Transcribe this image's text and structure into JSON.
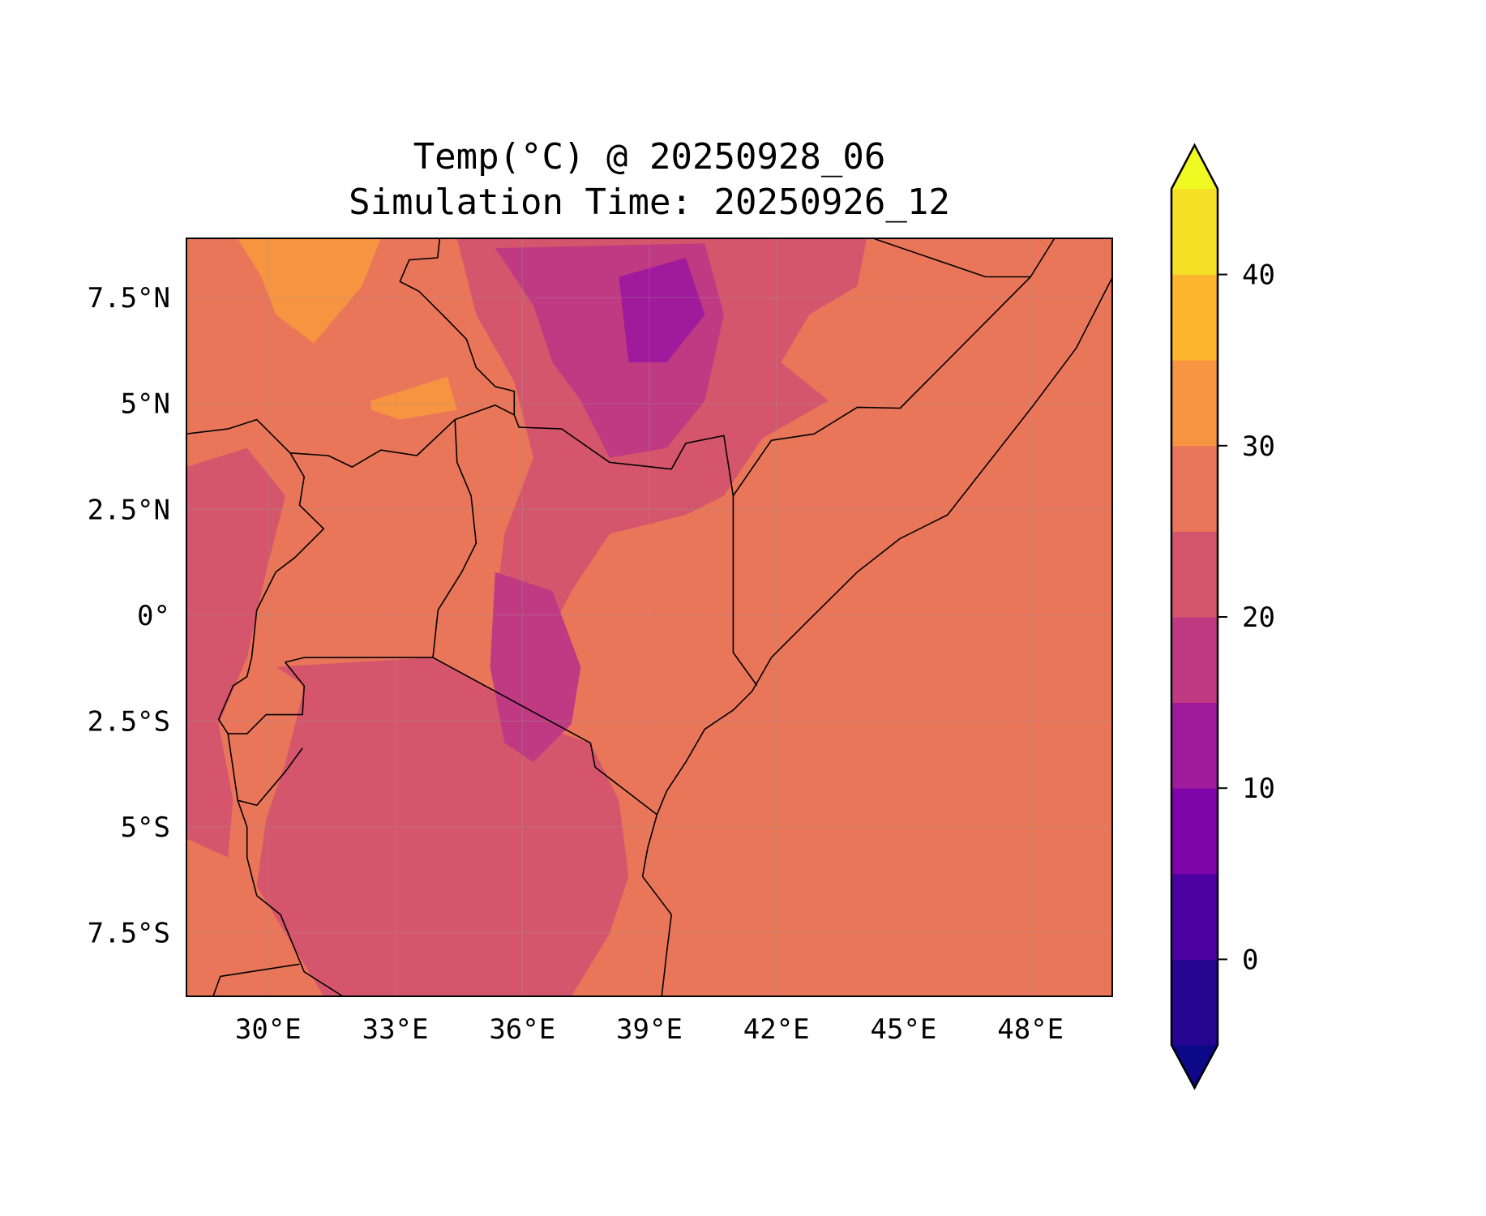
{
  "chart_data": {
    "type": "heatmap",
    "title": "Temp(°C) @ 20250928_06",
    "subtitle": "Simulation Time: 20250926_12",
    "xlabel": "",
    "ylabel": "",
    "xlim": [
      28.07,
      49.93
    ],
    "ylim": [
      -9.0,
      8.9
    ],
    "x_ticks": [
      {
        "v": 30,
        "label": "30°E"
      },
      {
        "v": 33,
        "label": "33°E"
      },
      {
        "v": 36,
        "label": "36°E"
      },
      {
        "v": 39,
        "label": "39°E"
      },
      {
        "v": 42,
        "label": "42°E"
      },
      {
        "v": 45,
        "label": "45°E"
      },
      {
        "v": 48,
        "label": "48°E"
      }
    ],
    "y_ticks": [
      {
        "v": 7.5,
        "label": "7.5°N"
      },
      {
        "v": 5,
        "label": "5°N"
      },
      {
        "v": 2.5,
        "label": "2.5°N"
      },
      {
        "v": 0,
        "label": "0°"
      },
      {
        "v": -2.5,
        "label": "2.5°S"
      },
      {
        "v": -5,
        "label": "5°S"
      },
      {
        "v": -7.5,
        "label": "7.5°S"
      }
    ],
    "grid": true,
    "colorbar": {
      "levels": [
        -5,
        0,
        5,
        10,
        15,
        20,
        25,
        30,
        35,
        40,
        45
      ],
      "colors": [
        "#260591",
        "#4c02a1",
        "#7e03a8",
        "#a01a9c",
        "#bf3a82",
        "#d5566c",
        "#ea765a",
        "#f79442",
        "#fdb52e",
        "#f5e026"
      ],
      "under_color": "#0d0887",
      "over_color": "#f0f921",
      "ticks": [
        {
          "v": 0,
          "label": "0"
        },
        {
          "v": 10,
          "label": "10"
        },
        {
          "v": 20,
          "label": "20"
        },
        {
          "v": 30,
          "label": "30"
        },
        {
          "v": 40,
          "label": "40"
        }
      ],
      "extend": "both"
    },
    "background_level": 6,
    "contours": [
      {
        "level": 5,
        "pts": [
          [
            30.18,
            -1.22
          ],
          [
            33.89,
            -1.0
          ],
          [
            35.13,
            -1.67
          ],
          [
            36.26,
            -2.57
          ],
          [
            37.61,
            -3.02
          ],
          [
            38.28,
            -4.37
          ],
          [
            38.51,
            -6.17
          ],
          [
            38.06,
            -7.52
          ],
          [
            37.16,
            -9.0
          ],
          [
            31.31,
            -9.0
          ],
          [
            30.41,
            -7.52
          ],
          [
            29.73,
            -6.4
          ],
          [
            29.95,
            -4.82
          ],
          [
            30.41,
            -3.47
          ],
          [
            30.86,
            -1.67
          ]
        ]
      },
      {
        "level": 5,
        "pts": [
          [
            28.06,
            3.5
          ],
          [
            29.5,
            3.95
          ],
          [
            30.41,
            2.82
          ],
          [
            29.95,
            1.02
          ],
          [
            29.5,
            -1.0
          ],
          [
            28.83,
            -2.57
          ],
          [
            29.17,
            -4.37
          ],
          [
            29.05,
            -5.72
          ],
          [
            28.06,
            -5.27
          ]
        ]
      },
      {
        "level": 5,
        "pts": [
          [
            34.46,
            8.89
          ],
          [
            44.13,
            8.89
          ],
          [
            43.91,
            7.77
          ],
          [
            42.78,
            7.1
          ],
          [
            42.11,
            5.97
          ],
          [
            43.23,
            5.07
          ],
          [
            41.66,
            4.17
          ],
          [
            40.76,
            2.82
          ],
          [
            39.86,
            2.37
          ],
          [
            38.06,
            1.92
          ],
          [
            37.16,
            0.57
          ],
          [
            36.26,
            -1.22
          ],
          [
            35.36,
            0.12
          ],
          [
            35.58,
            1.92
          ],
          [
            36.26,
            3.72
          ],
          [
            35.81,
            5.52
          ],
          [
            34.91,
            7.1
          ]
        ]
      },
      {
        "level": 4,
        "pts": [
          [
            35.36,
            8.67
          ],
          [
            40.31,
            8.78
          ],
          [
            40.76,
            7.1
          ],
          [
            40.31,
            5.07
          ],
          [
            39.41,
            3.95
          ],
          [
            38.06,
            3.72
          ],
          [
            37.38,
            5.07
          ],
          [
            36.71,
            5.97
          ],
          [
            36.26,
            7.32
          ]
        ]
      },
      {
        "level": 3,
        "pts": [
          [
            38.28,
            7.99
          ],
          [
            39.86,
            8.44
          ],
          [
            40.31,
            7.1
          ],
          [
            39.41,
            5.97
          ],
          [
            38.51,
            5.97
          ]
        ]
      },
      {
        "level": 4,
        "pts": [
          [
            35.36,
            1.02
          ],
          [
            36.71,
            0.57
          ],
          [
            37.38,
            -1.22
          ],
          [
            37.16,
            -2.57
          ],
          [
            36.26,
            -3.47
          ],
          [
            35.58,
            -3.02
          ],
          [
            35.24,
            -1.22
          ]
        ]
      },
      {
        "level": 7,
        "pts": [
          [
            29.28,
            8.89
          ],
          [
            32.66,
            8.89
          ],
          [
            32.21,
            7.77
          ],
          [
            31.08,
            6.42
          ],
          [
            30.18,
            7.1
          ],
          [
            29.84,
            7.99
          ]
        ]
      },
      {
        "level": 7,
        "pts": [
          [
            32.43,
            5.07
          ],
          [
            34.23,
            5.63
          ],
          [
            34.46,
            4.85
          ],
          [
            33.11,
            4.62
          ],
          [
            32.43,
            4.85
          ]
        ]
      }
    ],
    "borders": [
      [
        [
          49.94,
          7.99
        ],
        [
          49.08,
          6.31
        ],
        [
          48.07,
          4.96
        ],
        [
          46.04,
          2.37
        ],
        [
          44.92,
          1.81
        ],
        [
          43.91,
          1.02
        ],
        [
          42.78,
          -0.1
        ],
        [
          41.88,
          -1.0
        ],
        [
          41.43,
          -1.79
        ],
        [
          40.98,
          -2.24
        ],
        [
          40.31,
          -2.69
        ],
        [
          39.86,
          -3.47
        ],
        [
          39.41,
          -4.15
        ],
        [
          39.18,
          -4.71
        ],
        [
          38.96,
          -5.5
        ],
        [
          38.84,
          -6.17
        ],
        [
          39.18,
          -6.62
        ],
        [
          39.52,
          -7.07
        ],
        [
          39.41,
          -7.97
        ],
        [
          39.29,
          -9.0
        ]
      ],
      [
        [
          40.98,
          2.82
        ],
        [
          40.98,
          -0.88
        ],
        [
          41.54,
          -1.66
        ]
      ],
      [
        [
          40.98,
          2.82
        ],
        [
          41.88,
          4.13
        ],
        [
          42.89,
          4.28
        ],
        [
          43.91,
          4.91
        ],
        [
          44.92,
          4.89
        ],
        [
          48.0,
          7.99
        ],
        [
          48.56,
          8.89
        ]
      ],
      [
        [
          44.31,
          8.89
        ],
        [
          46.94,
          7.99
        ],
        [
          48.0,
          7.99
        ]
      ],
      [
        [
          40.98,
          2.82
        ],
        [
          40.76,
          4.24
        ],
        [
          39.86,
          4.06
        ],
        [
          39.52,
          3.45
        ],
        [
          38.06,
          3.61
        ],
        [
          36.93,
          4.4
        ],
        [
          35.92,
          4.44
        ],
        [
          35.81,
          4.73
        ],
        [
          35.36,
          4.96
        ],
        [
          34.41,
          4.62
        ],
        [
          33.51,
          3.77
        ],
        [
          32.66,
          3.9
        ],
        [
          31.98,
          3.5
        ],
        [
          31.42,
          3.77
        ],
        [
          30.52,
          3.83
        ],
        [
          29.73,
          4.62
        ],
        [
          29.05,
          4.4
        ],
        [
          28.06,
          4.28
        ]
      ],
      [
        [
          34.41,
          4.62
        ],
        [
          34.46,
          3.61
        ],
        [
          34.79,
          2.82
        ],
        [
          34.91,
          1.7
        ],
        [
          34.57,
          1.02
        ],
        [
          34.01,
          0.12
        ],
        [
          33.89,
          -1.0
        ]
      ],
      [
        [
          33.89,
          -1.0
        ],
        [
          37.61,
          -3.02
        ],
        [
          37.72,
          -3.59
        ],
        [
          39.18,
          -4.71
        ]
      ],
      [
        [
          33.89,
          -1.0
        ],
        [
          30.85,
          -1.0
        ],
        [
          30.4,
          -1.11
        ]
      ],
      [
        [
          30.52,
          3.83
        ],
        [
          30.85,
          3.27
        ],
        [
          30.74,
          2.6
        ],
        [
          31.31,
          2.04
        ],
        [
          30.63,
          1.36
        ],
        [
          30.18,
          1.02
        ],
        [
          29.73,
          0.12
        ],
        [
          29.61,
          -1.0
        ],
        [
          29.5,
          -1.45
        ],
        [
          29.17,
          -1.67
        ],
        [
          28.83,
          -2.46
        ],
        [
          29.05,
          -2.8
        ],
        [
          29.5,
          -2.8
        ],
        [
          29.95,
          -2.35
        ],
        [
          30.81,
          -2.35
        ],
        [
          30.85,
          -1.67
        ],
        [
          30.4,
          -1.11
        ]
      ],
      [
        [
          29.05,
          -2.8
        ],
        [
          29.28,
          -4.37
        ],
        [
          29.73,
          -4.49
        ],
        [
          30.4,
          -3.7
        ],
        [
          30.81,
          -3.14
        ]
      ],
      [
        [
          29.28,
          -4.37
        ],
        [
          29.5,
          -5.0
        ],
        [
          29.5,
          -5.72
        ],
        [
          29.73,
          -6.62
        ],
        [
          30.29,
          -7.07
        ],
        [
          30.85,
          -8.42
        ],
        [
          31.76,
          -9.0
        ]
      ],
      [
        [
          28.87,
          -8.53
        ],
        [
          30.74,
          -8.24
        ]
      ],
      [
        [
          28.87,
          -8.53
        ],
        [
          28.7,
          -9.0
        ]
      ],
      [
        [
          34.05,
          8.89
        ],
        [
          34.0,
          8.44
        ],
        [
          33.33,
          8.39
        ],
        [
          33.11,
          7.88
        ],
        [
          33.56,
          7.65
        ],
        [
          34.12,
          7.09
        ],
        [
          34.68,
          6.52
        ],
        [
          34.91,
          5.85
        ],
        [
          35.36,
          5.4
        ],
        [
          35.81,
          5.29
        ],
        [
          35.81,
          4.73
        ]
      ]
    ]
  }
}
